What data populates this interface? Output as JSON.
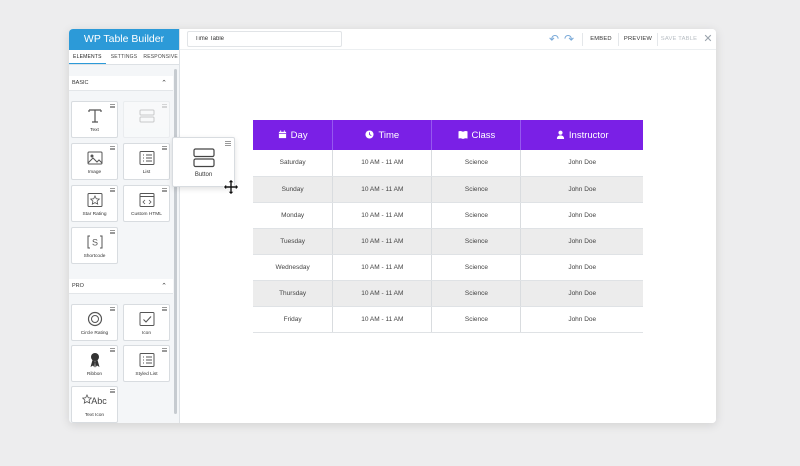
{
  "app": {
    "title": "WP Table Builder"
  },
  "sidebar": {
    "tabs": [
      {
        "label": "ELEMENTS",
        "active": true
      },
      {
        "label": "SETTINGS",
        "active": false
      },
      {
        "label": "RESPONSIVE",
        "active": false
      }
    ],
    "groups": [
      {
        "title": "BASIC",
        "items": [
          {
            "label": "Text",
            "icon": "text-icon"
          },
          {
            "label": "",
            "icon": "button-icon",
            "placeholder": true
          },
          {
            "label": "Image",
            "icon": "image-icon"
          },
          {
            "label": "List",
            "icon": "list-icon"
          },
          {
            "label": "Star Rating",
            "icon": "star-icon"
          },
          {
            "label": "Custom HTML",
            "icon": "code-icon"
          },
          {
            "label": "Shortcode",
            "icon": "shortcode-icon"
          }
        ]
      },
      {
        "title": "PRO",
        "items": [
          {
            "label": "Circle Rating",
            "icon": "circle-rating-icon"
          },
          {
            "label": "Icon",
            "icon": "check-icon"
          },
          {
            "label": "Ribbon",
            "icon": "ribbon-icon"
          },
          {
            "label": "Styled List",
            "icon": "styled-list-icon"
          },
          {
            "label": "Text Icon",
            "icon": "text-icon-icon",
            "glyph": "Abc"
          }
        ]
      }
    ]
  },
  "toolbar": {
    "table_name": "Time Table",
    "embed": "EMBED",
    "preview": "PREVIEW",
    "save": "SAVE TABLE",
    "close": "✕"
  },
  "drag": {
    "label": "Button",
    "icon": "button-icon"
  },
  "table": {
    "header_color": "#7a20e6",
    "headers": [
      {
        "label": "Day",
        "icon": "calendar-icon"
      },
      {
        "label": "Time",
        "icon": "clock-icon"
      },
      {
        "label": "Class",
        "icon": "book-icon"
      },
      {
        "label": "Instructor",
        "icon": "user-icon"
      }
    ],
    "rows": [
      [
        "Saturday",
        "10 AM - 11 AM",
        "Science",
        "John Doe"
      ],
      [
        "Sunday",
        "10 AM - 11 AM",
        "Science",
        "John Doe"
      ],
      [
        "Monday",
        "10 AM - 11 AM",
        "Science",
        "John Doe"
      ],
      [
        "Tuesday",
        "10 AM - 11 AM",
        "Science",
        "John Doe"
      ],
      [
        "Wednesday",
        "10 AM - 11 AM",
        "Science",
        "John Doe"
      ],
      [
        "Thursday",
        "10 AM - 11 AM",
        "Science",
        "John Doe"
      ],
      [
        "Friday",
        "10 AM - 11 AM",
        "Science",
        "John Doe"
      ]
    ]
  }
}
